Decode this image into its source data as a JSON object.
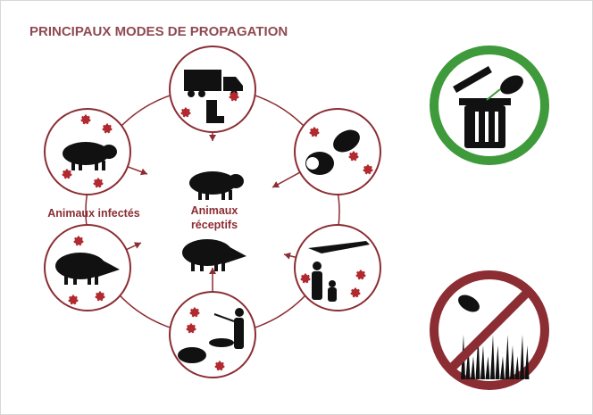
{
  "header": {
    "title": "PRINCIPAUX MODES DE PROPAGATION"
  },
  "labels": {
    "infected": "Animaux  infectés",
    "receptive": [
      "Animaux",
      "réceptifs"
    ]
  }
}
